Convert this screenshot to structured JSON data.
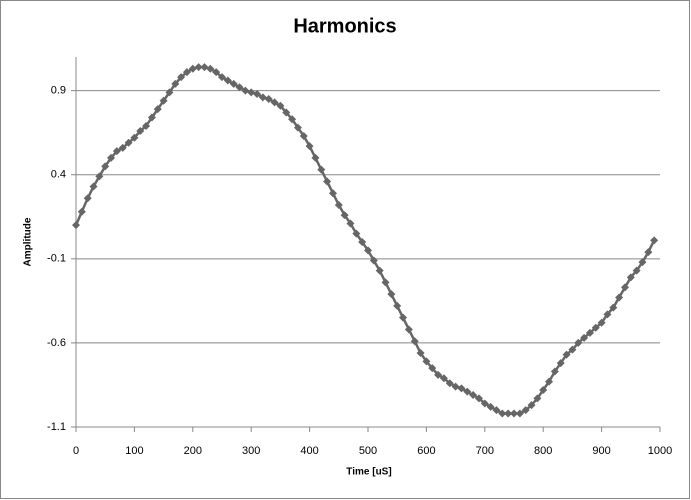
{
  "chart_data": {
    "type": "line",
    "title": "Harmonics",
    "x_label": "Time [uS]",
    "y_label": "Amplitude",
    "x": [
      0,
      10,
      20,
      30,
      40,
      50,
      60,
      70,
      80,
      90,
      100,
      110,
      120,
      130,
      140,
      150,
      160,
      170,
      180,
      190,
      200,
      210,
      220,
      230,
      240,
      250,
      260,
      270,
      280,
      290,
      300,
      310,
      320,
      330,
      340,
      350,
      360,
      370,
      380,
      390,
      400,
      410,
      420,
      430,
      440,
      450,
      460,
      470,
      480,
      490,
      500,
      510,
      520,
      530,
      540,
      550,
      560,
      570,
      580,
      590,
      600,
      610,
      620,
      630,
      640,
      650,
      660,
      670,
      680,
      690,
      700,
      710,
      720,
      730,
      740,
      750,
      760,
      770,
      780,
      790,
      800,
      810,
      820,
      830,
      840,
      850,
      860,
      870,
      880,
      890,
      900,
      910,
      920,
      930,
      940,
      950,
      960,
      970,
      980,
      990
    ],
    "series": [
      {
        "color": "#666666",
        "marker": "diamond",
        "values": [
          0.1,
          0.18,
          0.26,
          0.33,
          0.39,
          0.45,
          0.5,
          0.54,
          0.56,
          0.59,
          0.62,
          0.66,
          0.69,
          0.74,
          0.79,
          0.84,
          0.89,
          0.94,
          0.98,
          1.01,
          1.03,
          1.04,
          1.04,
          1.03,
          1.01,
          0.98,
          0.96,
          0.94,
          0.92,
          0.9,
          0.89,
          0.88,
          0.86,
          0.85,
          0.83,
          0.81,
          0.77,
          0.73,
          0.68,
          0.63,
          0.57,
          0.5,
          0.43,
          0.36,
          0.29,
          0.22,
          0.16,
          0.11,
          0.05,
          0.0,
          -0.05,
          -0.11,
          -0.17,
          -0.24,
          -0.31,
          -0.38,
          -0.45,
          -0.52,
          -0.59,
          -0.66,
          -0.71,
          -0.75,
          -0.79,
          -0.81,
          -0.84,
          -0.86,
          -0.87,
          -0.89,
          -0.91,
          -0.93,
          -0.96,
          -0.98,
          -1.0,
          -1.02,
          -1.02,
          -1.02,
          -1.02,
          -1.0,
          -0.97,
          -0.93,
          -0.88,
          -0.83,
          -0.77,
          -0.72,
          -0.67,
          -0.64,
          -0.6,
          -0.57,
          -0.54,
          -0.51,
          -0.48,
          -0.43,
          -0.39,
          -0.33,
          -0.27,
          -0.21,
          -0.17,
          -0.12,
          -0.06,
          0.01
        ]
      }
    ],
    "xlim": [
      0,
      1000
    ],
    "xticks": [
      0,
      100,
      200,
      300,
      400,
      500,
      600,
      700,
      800,
      900,
      1000
    ],
    "ylim": [
      -1.1,
      1.1
    ],
    "yticks": [
      0.9,
      0.4,
      -0.1,
      -0.6,
      -1.1
    ],
    "grid": true
  }
}
